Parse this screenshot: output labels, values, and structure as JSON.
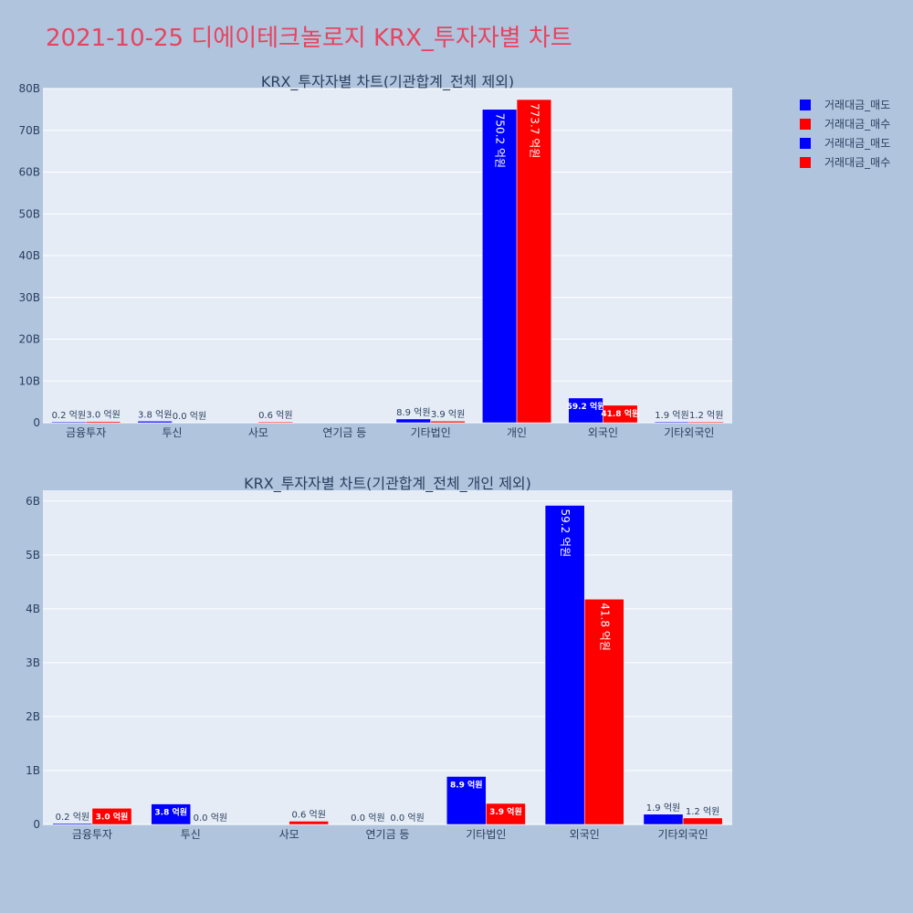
{
  "title": "2021-10-25 디에이테크놀로지 KRX_투자자별 차트",
  "legend": [
    {
      "name": "거래대금_매도",
      "color": "#0000ff"
    },
    {
      "name": "거래대금_매수",
      "color": "#ff0000"
    },
    {
      "name": "거래대금_매도",
      "color": "#0000ff"
    },
    {
      "name": "거래대금_매수",
      "color": "#ff0000"
    }
  ],
  "chart_data": [
    {
      "type": "bar",
      "title": "KRX_투자자별 차트(기관합계_전체 제외)",
      "categories": [
        "금융투자",
        "투신",
        "사모",
        "연기금 등",
        "기타법인",
        "개인",
        "외국인",
        "기타외국인"
      ],
      "ylim": [
        0,
        80000000000
      ],
      "yticks": [
        {
          "value": 0,
          "label": "0"
        },
        {
          "value": 10000000000,
          "label": "10B"
        },
        {
          "value": 20000000000,
          "label": "20B"
        },
        {
          "value": 30000000000,
          "label": "30B"
        },
        {
          "value": 40000000000,
          "label": "40B"
        },
        {
          "value": 50000000000,
          "label": "50B"
        },
        {
          "value": 60000000000,
          "label": "60B"
        },
        {
          "value": 70000000000,
          "label": "70B"
        },
        {
          "value": 80000000000,
          "label": "80B"
        }
      ],
      "grid": true,
      "series": [
        {
          "name": "거래대금_매도",
          "color": "#0000ff",
          "values": [
            20000000,
            380000000,
            0,
            0,
            890000000,
            75020000000,
            5920000000,
            190000000
          ],
          "labels": [
            "0.2 억원",
            "3.8 억원",
            "",
            "",
            "8.9 억원",
            "750.2 억원",
            "59.2 억원",
            "1.9 억원"
          ]
        },
        {
          "name": "거래대금_매수",
          "color": "#ff0000",
          "values": [
            300000000,
            0,
            60000000,
            0,
            390000000,
            77370000000,
            4180000000,
            120000000
          ],
          "labels": [
            "3.0 억원",
            "0.0 억원",
            "0.6 억원",
            "",
            "3.9 억원",
            "773.7 억원",
            "41.8 억원",
            "1.2 억원"
          ]
        }
      ]
    },
    {
      "type": "bar",
      "title": "KRX_투자자별 차트(기관합계_전체_개인 제외)",
      "categories": [
        "금융투자",
        "투신",
        "사모",
        "연기금 등",
        "기타법인",
        "외국인",
        "기타외국인"
      ],
      "ylim": [
        0,
        6200000000
      ],
      "yticks": [
        {
          "value": 0,
          "label": "0"
        },
        {
          "value": 1000000000,
          "label": "1B"
        },
        {
          "value": 2000000000,
          "label": "2B"
        },
        {
          "value": 3000000000,
          "label": "3B"
        },
        {
          "value": 4000000000,
          "label": "4B"
        },
        {
          "value": 5000000000,
          "label": "5B"
        },
        {
          "value": 6000000000,
          "label": "6B"
        }
      ],
      "grid": true,
      "series": [
        {
          "name": "거래대금_매도",
          "color": "#0000ff",
          "values": [
            20000000,
            380000000,
            0,
            0,
            890000000,
            5920000000,
            190000000
          ],
          "labels": [
            "0.2 억원",
            "3.8 억원",
            "",
            "0.0 억원",
            "8.9 억원",
            "59.2 억원",
            "1.9 억원"
          ]
        },
        {
          "name": "거래대금_매수",
          "color": "#ff0000",
          "values": [
            300000000,
            0,
            60000000,
            0,
            390000000,
            4180000000,
            120000000
          ],
          "labels": [
            "3.0 억원",
            "0.0 억원",
            "0.6 억원",
            "0.0 억원",
            "3.9 억원",
            "41.8 억원",
            "1.2 억원"
          ]
        }
      ]
    }
  ]
}
